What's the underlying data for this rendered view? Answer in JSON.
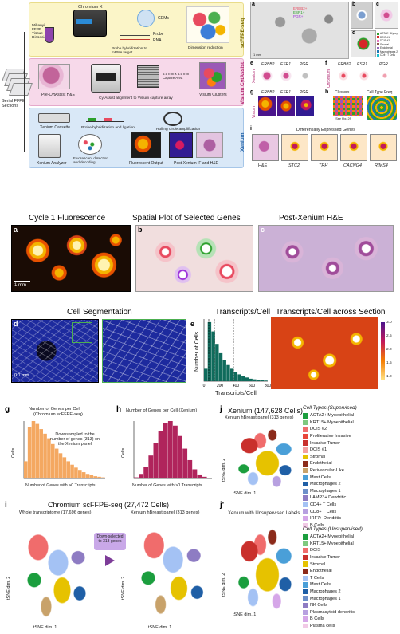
{
  "workflow": {
    "miltenyi_label": "Miltenyi FFPE Tissue Dissociation",
    "chromium_label": "Chromium X",
    "gems_label": "GEMs",
    "probe_label": "Probe",
    "rna_label": "RNA",
    "probe_hyb_label": "Probe hybridization to mRNA target",
    "dim_red_label": "Dimension reduction",
    "scffpe_tag": "scFFPE-seq",
    "serial_label": "Serial FFPE Sections",
    "precytassist_label": "Pre-CytAssist H&E",
    "cytassist_align_label": "CytAssist alignment to Visium capture array",
    "capture_area_label": "6.5 mm x 6.5 mm Capture Area",
    "visium_clusters_label": "Visium Clusters",
    "visium_tag": "Visium CytAssist",
    "xenium_cassette_label": "Xenium Cassette",
    "probe_hyb_lig_label": "Probe hybridization and ligation",
    "rolling_circle_label": "Rolling circle amplification",
    "xenium_analyzer_label": "Xenium Analyzer",
    "fluor_detect_label": "Fluorescent detection and decoding",
    "fluor_output_label": "Fluorescent Output",
    "post_xenium_label": "Post-Xenium IF and H&E",
    "xenium_tag": "Xenium"
  },
  "right_panels": {
    "a_letter": "a",
    "b_letter": "b",
    "c_letter": "c",
    "d_letter": "d",
    "e_letter": "e",
    "f_letter": "f",
    "g_letter": "g",
    "h_letter": "h",
    "i_letter": "i",
    "a_genes": [
      "ERBB2+",
      "ESR1+",
      "PGR+"
    ],
    "scale_1mm": "1 mm",
    "d_legend": [
      {
        "label": "ACTA2+ Myoepi",
        "color": "#2ca02c"
      },
      {
        "label": "DCIS #1",
        "color": "#d62728"
      },
      {
        "label": "DCIS #2",
        "color": "#e377c2"
      },
      {
        "label": "Stromal",
        "color": "#8c564b"
      },
      {
        "label": "Endothelial",
        "color": "#9467bd"
      },
      {
        "label": "Macrophages 2",
        "color": "#1f77b4"
      },
      {
        "label": "CD4+ T Cells",
        "color": "#17becf"
      }
    ],
    "e_genes": [
      "ERBB2",
      "ESR1",
      "PGR"
    ],
    "e_row_label": "Xenium",
    "f_genes": [
      "ERBB2",
      "ESR1",
      "PGR"
    ],
    "f_row_label": "Chromium",
    "g_genes": [
      "ERBB2",
      "ESR1",
      "PGR"
    ],
    "g_row_label": "Visium",
    "h_title": "Clusters",
    "h_see": "(See Fig. 2f)",
    "h_freq": "Cell Type Freq.",
    "i_title": "Differentially Expressed Genes",
    "i_genes": [
      "H&E",
      "STC2",
      "TRH",
      "CACNG4",
      "RIMS4"
    ]
  },
  "mid": {
    "a_letter": "a",
    "b_letter": "b",
    "c_letter": "c",
    "a_title": "Cycle 1 Fluorescence",
    "b_title": "Spatial Plot of Selected Genes",
    "c_title": "Post-Xenium H&E",
    "scale_1mm": "1 mm",
    "d_letter": "d",
    "e_letter": "e",
    "f_letter": "f",
    "d_title": "Cell Segmentation",
    "e_title": "Transcripts/Cell",
    "f_title": "Transcripts/Cell across Section",
    "scale_01mm": "0.1 mm",
    "e_ylabel": "Number of Cells",
    "e_xlabel": "Transcripts/Cell",
    "e_xticks": [
      "0",
      "200",
      "400",
      "600",
      "800"
    ],
    "f_cbar_ticks": [
      "3.0",
      "2.5",
      "2.0",
      "1.5",
      "1.0"
    ]
  },
  "bottom": {
    "g_letter": "g",
    "h_letter": "h",
    "j_letter": "j",
    "i_letter": "i",
    "jp_letter": "j'",
    "g_title_1": "Number of Genes per Cell",
    "g_title_2": "(Chromium scFFPE-seq)",
    "g_note": "Downsampled to the number of genes (313) on the Xenium panel",
    "g_ylabel": "Cells",
    "g_xlabel": "Number of Genes with >0 Transcripts",
    "h_title": "Number of Genes per Cell (Xenium)",
    "h_ylabel": "Cells",
    "h_xlabel": "Number of Genes with >0 Transcripts",
    "j_title": "Xenium (147,628 Cells)",
    "j_subtitle": "Xenium hBreast panel (313 genes)",
    "tsne1": "tSNE dim. 1",
    "tsne2": "tSNE dim. 2",
    "i_title": "Chromium scFFPE-seq (27,472 Cells)",
    "i_sub1": "Whole transcriptome (17,696 genes)",
    "i_sub2": "Xenium hBreast panel (313 genes)",
    "i_arrow": "Down-selected to 313 genes",
    "jp_title": "Xenium with Unsupervised Labels",
    "sup_title": "Cell Types (Supervised)",
    "sup_legend": [
      {
        "label": "ACTA2+ Myoepithelial",
        "color": "#1b9e3e"
      },
      {
        "label": "KRT15+ Myoepithelial",
        "color": "#7fc97f"
      },
      {
        "label": "DCIS #2",
        "color": "#f06c6c"
      },
      {
        "label": "Proliferative Invasive",
        "color": "#e8463a"
      },
      {
        "label": "Invasive Tumor",
        "color": "#c9302c"
      },
      {
        "label": "DCIS #1",
        "color": "#f3a0a0"
      },
      {
        "label": "Stromal",
        "color": "#e6c200"
      },
      {
        "label": "Endothelial",
        "color": "#8b2a1a"
      },
      {
        "label": "Perivascular-Like",
        "color": "#c8a26a"
      },
      {
        "label": "Mast Cells",
        "color": "#4a9fd8"
      },
      {
        "label": "Macrophages 2",
        "color": "#1f5fa6"
      },
      {
        "label": "Macrophages 1",
        "color": "#6c8fc9"
      },
      {
        "label": "LAMP3+ Dendritic",
        "color": "#8e7cc3"
      },
      {
        "label": "CD4+ T Cells",
        "color": "#a4c2f4"
      },
      {
        "label": "CD8+ T Cells",
        "color": "#b7a0e0"
      },
      {
        "label": "IRF7+ Dendritic",
        "color": "#d5a6e8"
      },
      {
        "label": "B Cells",
        "color": "#f1c9e6"
      }
    ],
    "unsup_title": "Cell Types (Unsupervised)",
    "unsup_legend": [
      {
        "label": "ACTA2+ Myoepithelial",
        "color": "#1b9e3e"
      },
      {
        "label": "KRT15+ Myoepithelial",
        "color": "#7fc97f"
      },
      {
        "label": "DCIS",
        "color": "#f06c6c"
      },
      {
        "label": "Invasive Tumor",
        "color": "#c9302c"
      },
      {
        "label": "Stromal",
        "color": "#e6c200"
      },
      {
        "label": "Endothelial",
        "color": "#8b2a1a"
      },
      {
        "label": "T Cells",
        "color": "#a4c2f4"
      },
      {
        "label": "Mast Cells",
        "color": "#4a9fd8"
      },
      {
        "label": "Macrophages 2",
        "color": "#1f5fa6"
      },
      {
        "label": "Macrophages 1",
        "color": "#6c8fc9"
      },
      {
        "label": "NK Cells",
        "color": "#8e7cc3"
      },
      {
        "label": "Plasmacytoid dendritic",
        "color": "#b7a0e0"
      },
      {
        "label": "B Cells",
        "color": "#d5a6e8"
      },
      {
        "label": "Plasma cells",
        "color": "#f1c9e6"
      }
    ]
  },
  "chart_data": [
    {
      "type": "bar",
      "title": "Transcripts/Cell",
      "xlabel": "Transcripts/Cell",
      "ylabel": "Number of Cells",
      "x": [
        0,
        50,
        100,
        150,
        200,
        250,
        300,
        350,
        400,
        450,
        500,
        550,
        600,
        650,
        700,
        750,
        800
      ],
      "values": [
        0.2,
        0.95,
        0.8,
        0.6,
        0.45,
        0.34,
        0.26,
        0.2,
        0.15,
        0.11,
        0.08,
        0.06,
        0.04,
        0.03,
        0.02,
        0.015,
        0.01
      ],
      "xlim": [
        0,
        800
      ]
    },
    {
      "type": "bar",
      "title": "Number of Genes per Cell (Chromium scFFPE-seq)",
      "xlabel": "Number of Genes with >0 Transcripts",
      "ylabel": "Cells",
      "x": [
        0,
        15,
        30,
        45,
        60,
        75,
        90,
        105,
        120,
        135,
        150,
        165,
        180,
        195,
        210,
        225,
        240,
        255,
        270,
        285,
        300
      ],
      "values": [
        0.3,
        0.9,
        1.0,
        0.95,
        0.86,
        0.78,
        0.7,
        0.6,
        0.52,
        0.44,
        0.37,
        0.3,
        0.24,
        0.19,
        0.15,
        0.11,
        0.08,
        0.06,
        0.04,
        0.03,
        0.02
      ]
    },
    {
      "type": "bar",
      "title": "Number of Genes per Cell (Xenium)",
      "xlabel": "Number of Genes with >0 Transcripts",
      "ylabel": "Cells",
      "x": [
        0,
        10,
        20,
        30,
        40,
        50,
        60,
        70,
        80,
        90,
        100,
        110,
        120,
        130,
        140,
        150
      ],
      "values": [
        0.02,
        0.08,
        0.2,
        0.4,
        0.62,
        0.82,
        0.96,
        1.0,
        0.92,
        0.74,
        0.52,
        0.32,
        0.16,
        0.07,
        0.03,
        0.01
      ]
    }
  ]
}
